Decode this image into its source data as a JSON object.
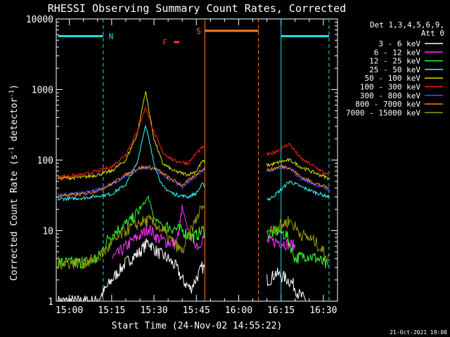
{
  "chart_data": {
    "type": "line",
    "title": "RHESSI Observing Summary Count Rates, Corrected",
    "xlabel": "Start Time (24-Nov-02 14:55:22)",
    "ylabel": "Corrected Count Rate (s⁻¹ detector⁻¹)",
    "ylabel_main": "Corrected Count Rate (s",
    "ylabel_sup1": "-1",
    "ylabel_mid": " detector",
    "ylabel_sup2": "-1",
    "ylabel_end": ")",
    "yscale": "log",
    "ylim": [
      1,
      10000
    ],
    "xlim": [
      "14:55:22",
      "16:35:00"
    ],
    "x_ticks": [
      "15:00",
      "15:15",
      "15:30",
      "15:45",
      "16:00",
      "16:15",
      "16:30"
    ],
    "y_ticks": [
      "1",
      "10",
      "100",
      "1000",
      "10000"
    ],
    "legend_placement": "top-right",
    "legend_header": [
      "Det 1,3,4,5,6,9,",
      "Att 0"
    ],
    "footer_date": "21-Oct-2021 19:08",
    "grid": false,
    "gaps": [
      [
        "15:48",
        "16:10"
      ]
    ],
    "series": [
      {
        "name": "3 - 6 keV",
        "color": "#ffffff",
        "x": [
          "14:56",
          "15:05",
          "15:10",
          "15:15",
          "15:20",
          "15:25",
          "15:28",
          "15:31",
          "15:35",
          "15:38",
          "15:40",
          "15:43",
          "15:46",
          "15:47",
          "16:11",
          "16:13",
          "16:16",
          "16:19",
          "16:21",
          "16:24"
        ],
        "y": [
          1.0,
          1.0,
          1.0,
          2.0,
          3.5,
          5.0,
          7.0,
          5.0,
          4.0,
          3.0,
          2.0,
          1.5,
          2.5,
          3.0,
          2.0,
          2.5,
          2.2,
          1.8,
          1.3,
          1.0
        ]
      },
      {
        "name": "6 - 12 keV",
        "color": "#ff33ff",
        "x": [
          "15:15",
          "15:18",
          "15:22",
          "15:26",
          "15:28",
          "15:31",
          "15:34",
          "15:38",
          "15:40",
          "15:43",
          "15:46",
          "15:47",
          "16:11",
          "16:14",
          "16:17",
          "16:20"
        ],
        "y": [
          4.0,
          5.0,
          7.0,
          9.0,
          11.0,
          8.0,
          7.0,
          6.5,
          20.0,
          8.0,
          6.0,
          8.0,
          7.0,
          7.0,
          6.5,
          6.0
        ]
      },
      {
        "name": "12 - 25 keV",
        "color": "#33ff33",
        "x": [
          "14:56",
          "15:05",
          "15:10",
          "15:14",
          "15:18",
          "15:22",
          "15:25",
          "15:28",
          "15:30",
          "15:33",
          "15:36",
          "15:40",
          "15:44",
          "15:47",
          "16:11",
          "16:14",
          "16:17",
          "16:20",
          "16:24",
          "16:28",
          "16:32"
        ],
        "y": [
          3.5,
          3.5,
          4.0,
          8.0,
          11.0,
          14.0,
          20.0,
          30.0,
          15.0,
          12.0,
          11.0,
          10.0,
          8.0,
          10.0,
          9.0,
          10.0,
          8.5,
          4.0,
          4.5,
          4.0,
          3.0
        ]
      },
      {
        "name": "25 - 50 keV",
        "color": "#33ffff",
        "x": [
          "14:56",
          "15:05",
          "15:10",
          "15:15",
          "15:20",
          "15:24",
          "15:27",
          "15:30",
          "15:33",
          "15:37",
          "15:42",
          "15:45",
          "15:47",
          "16:11",
          "16:15",
          "16:18",
          "16:22",
          "16:27",
          "16:32"
        ],
        "y": [
          28.0,
          29.0,
          31.0,
          33.0,
          45.0,
          90.0,
          320.0,
          90.0,
          42.0,
          33.0,
          30.0,
          34.0,
          45.0,
          28.0,
          38.0,
          50.0,
          42.0,
          35.0,
          30.0
        ]
      },
      {
        "name": "50 - 100 keV",
        "color": "#dddd00",
        "x": [
          "14:56",
          "15:05",
          "15:10",
          "15:15",
          "15:20",
          "15:24",
          "15:27",
          "15:30",
          "15:33",
          "15:37",
          "15:42",
          "15:45",
          "15:47",
          "16:11",
          "16:15",
          "16:18",
          "16:22",
          "16:27",
          "16:32"
        ],
        "y": [
          55.0,
          57.0,
          62.0,
          70.0,
          100.0,
          230.0,
          950.0,
          200.0,
          90.0,
          70.0,
          62.0,
          70.0,
          95.0,
          85.0,
          95.0,
          100.0,
          80.0,
          66.0,
          55.0
        ]
      },
      {
        "name": "100 - 300 keV",
        "color": "#ff2020",
        "x": [
          "14:56",
          "15:05",
          "15:10",
          "15:15",
          "15:20",
          "15:24",
          "15:27",
          "15:30",
          "15:33",
          "15:37",
          "15:42",
          "15:45",
          "15:47",
          "16:11",
          "16:15",
          "16:18",
          "16:22",
          "16:27",
          "16:32"
        ],
        "y": [
          58.0,
          62.0,
          70.0,
          80.0,
          120.0,
          250.0,
          560.0,
          250.0,
          130.0,
          98.0,
          90.0,
          125.0,
          150.0,
          120.0,
          145.0,
          170.0,
          105.0,
          80.0,
          60.0
        ]
      },
      {
        "name": "300 - 800 keV",
        "color": "#3355ff",
        "x": [
          "14:56",
          "15:05",
          "15:10",
          "15:15",
          "15:20",
          "15:25",
          "15:28",
          "15:31",
          "15:35",
          "15:40",
          "15:44",
          "15:47",
          "16:11",
          "16:15",
          "16:18",
          "16:22",
          "16:27",
          "16:32"
        ],
        "y": [
          32.0,
          34.0,
          38.0,
          45.0,
          60.0,
          76.0,
          78.0,
          72.0,
          55.0,
          42.0,
          55.0,
          70.0,
          70.0,
          80.0,
          75.0,
          55.0,
          45.0,
          38.0
        ]
      },
      {
        "name": "800 - 7000 keV",
        "color": "#ff8020",
        "x": [
          "14:56",
          "15:05",
          "15:10",
          "15:15",
          "15:20",
          "15:25",
          "15:28",
          "15:31",
          "15:35",
          "15:40",
          "15:44",
          "15:47",
          "16:11",
          "16:15",
          "16:18",
          "16:22",
          "16:27",
          "16:32"
        ],
        "y": [
          31.0,
          33.0,
          37.0,
          46.0,
          62.0,
          78.0,
          80.0,
          74.0,
          57.0,
          44.0,
          58.0,
          75.0,
          72.0,
          82.0,
          78.0,
          58.0,
          47.0,
          40.0
        ]
      },
      {
        "name": "7000 - 15000 keV",
        "color": "#999900",
        "x": [
          "14:56",
          "15:05",
          "15:10",
          "15:15",
          "15:20",
          "15:25",
          "15:28",
          "15:31",
          "15:35",
          "15:40",
          "15:44",
          "15:47",
          "16:11",
          "16:15",
          "16:18",
          "16:22",
          "16:27",
          "16:32"
        ],
        "y": [
          3.5,
          3.5,
          4.0,
          6.5,
          10.0,
          13.0,
          14.0,
          12.0,
          8.0,
          5.0,
          12.0,
          22.0,
          10.0,
          12.0,
          14.0,
          9.0,
          7.0,
          4.0
        ]
      }
    ],
    "flag_labels": [
      {
        "label": "N",
        "color": "#22dddd"
      },
      {
        "label": "F",
        "color": "#ff3030"
      },
      {
        "label": "S",
        "color": "#ff8020"
      }
    ],
    "flag_segments": [
      {
        "flag": "N",
        "x_start": "14:56",
        "x_end": "15:12",
        "color": "#22dddd"
      },
      {
        "flag": "N",
        "x_start": "16:15",
        "x_end": "16:32",
        "color": "#22dddd"
      },
      {
        "flag": "F",
        "x_start": "15:37",
        "x_end": "15:39",
        "color": "#ff3030"
      },
      {
        "flag": "S",
        "x_start": "15:48",
        "x_end": "16:07",
        "color": "#ff8020"
      }
    ],
    "vertical_markers": [
      {
        "x": "15:12",
        "color": "#22dddd",
        "style": "dashed"
      },
      {
        "x": "15:48",
        "color": "#ff8020",
        "style": "solid"
      },
      {
        "x": "16:07",
        "color": "#ff8020",
        "style": "dashed"
      },
      {
        "x": "16:15",
        "color": "#22dddd",
        "style": "solid"
      },
      {
        "x": "16:32",
        "color": "#22dddd",
        "style": "dashed"
      }
    ]
  }
}
